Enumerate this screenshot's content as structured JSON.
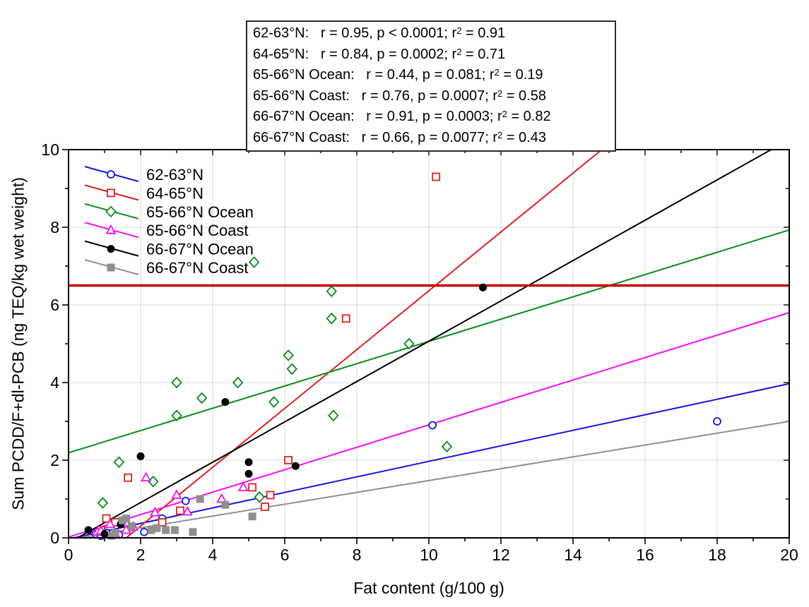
{
  "chart_data": {
    "type": "scatter",
    "xlabel": "Fat content (g/100 g)",
    "ylabel": "Sum PCDD/F+dl-PCB (ng TEQ/kg wet weight)",
    "xlim": [
      0,
      20
    ],
    "ylim": [
      0,
      10
    ],
    "x_ticks": [
      0,
      2,
      4,
      6,
      8,
      10,
      12,
      14,
      16,
      18,
      20
    ],
    "y_ticks": [
      0,
      2,
      4,
      6,
      8,
      10
    ],
    "grid": true,
    "legend_position": "top-left-inside",
    "reference_line": {
      "y": 6.5,
      "color": "#cc0000"
    },
    "series": [
      {
        "name": "62-63°N",
        "color": "#1515dd",
        "marker": "circle-open",
        "points": [
          [
            0.75,
            0.1
          ],
          [
            0.9,
            0.05
          ],
          [
            1.05,
            0.13
          ],
          [
            1.4,
            0.08
          ],
          [
            2.1,
            0.15
          ],
          [
            2.6,
            0.5
          ],
          [
            3.25,
            0.95
          ],
          [
            10.1,
            2.9
          ],
          [
            18.0,
            3.0
          ]
        ],
        "trend_line": [
          0.15,
          0.0,
          20,
          3.97
        ],
        "stats": {
          "group": "62-63°N",
          "r": "0.95",
          "p": "< 0.0001",
          "r2": "0.91"
        }
      },
      {
        "name": "64-65°N",
        "color": "#e01f1f",
        "marker": "square-open",
        "points": [
          [
            0.9,
            0.2
          ],
          [
            1.05,
            0.5
          ],
          [
            1.3,
            0.4
          ],
          [
            1.65,
            1.55
          ],
          [
            2.6,
            0.4
          ],
          [
            3.1,
            0.7
          ],
          [
            5.1,
            1.3
          ],
          [
            5.45,
            0.8
          ],
          [
            5.6,
            1.1
          ],
          [
            6.1,
            2.0
          ],
          [
            7.7,
            5.65
          ],
          [
            10.2,
            9.3
          ]
        ],
        "trend_line": [
          1.6,
          0.0,
          14.8,
          10.0
        ],
        "stats": {
          "group": "64-65°N",
          "r": "0.84",
          "p": "= 0.0002",
          "r2": "0.71"
        }
      },
      {
        "name": "65-66°N Ocean",
        "color": "#0a8c1a",
        "marker": "diamond-open",
        "points": [
          [
            0.95,
            0.9
          ],
          [
            1.4,
            1.95
          ],
          [
            2.35,
            1.45
          ],
          [
            3.0,
            3.15
          ],
          [
            3.0,
            4.0
          ],
          [
            3.7,
            3.6
          ],
          [
            4.7,
            4.0
          ],
          [
            5.15,
            7.1
          ],
          [
            5.3,
            1.05
          ],
          [
            5.7,
            3.5
          ],
          [
            6.1,
            4.7
          ],
          [
            6.2,
            4.35
          ],
          [
            7.3,
            6.35
          ],
          [
            7.3,
            5.65
          ],
          [
            7.35,
            3.15
          ],
          [
            9.45,
            5.0
          ],
          [
            10.5,
            2.35
          ]
        ],
        "trend_line": [
          0.0,
          2.19,
          20,
          7.93
        ],
        "stats": {
          "group": "65-66°N Ocean",
          "r": "0.44",
          "p": "= 0.081",
          "r2": "0.19"
        }
      },
      {
        "name": "65-66°N Coast",
        "color": "#f50df5",
        "marker": "triangle-open",
        "points": [
          [
            0.8,
            0.15
          ],
          [
            0.9,
            0.18
          ],
          [
            1.15,
            0.35
          ],
          [
            1.3,
            0.1
          ],
          [
            1.6,
            0.2
          ],
          [
            1.8,
            0.28
          ],
          [
            2.15,
            1.55
          ],
          [
            2.4,
            0.65
          ],
          [
            3.0,
            1.1
          ],
          [
            3.3,
            0.67
          ],
          [
            4.25,
            1.0
          ],
          [
            4.85,
            1.3
          ]
        ],
        "trend_line": [
          0.0,
          0.02,
          20,
          5.8
        ],
        "stats": {
          "group": "65-66°N Coast",
          "r": "0.76",
          "p": "= 0.0007",
          "r2": "0.58"
        }
      },
      {
        "name": "66-67°N Ocean",
        "color": "#000000",
        "marker": "circle-filled",
        "points": [
          [
            0.55,
            0.2
          ],
          [
            1.0,
            0.1
          ],
          [
            1.45,
            0.35
          ],
          [
            2.0,
            2.1
          ],
          [
            4.35,
            3.5
          ],
          [
            5.0,
            1.95
          ],
          [
            5.0,
            1.65
          ],
          [
            6.3,
            1.85
          ],
          [
            11.5,
            6.45
          ]
        ],
        "trend_line": [
          0.25,
          0.0,
          19.5,
          10.0
        ],
        "stats": {
          "group": "66-67°N Ocean",
          "r": "0.91",
          "p": "= 0.0003",
          "r2": "0.82"
        }
      },
      {
        "name": "66-67°N Coast",
        "color": "#8f8f8f",
        "marker": "square-filled",
        "points": [
          [
            1.2,
            0.05
          ],
          [
            1.3,
            0.13
          ],
          [
            1.5,
            0.45
          ],
          [
            1.6,
            0.5
          ],
          [
            1.75,
            0.3
          ],
          [
            2.3,
            0.2
          ],
          [
            2.45,
            0.25
          ],
          [
            2.7,
            0.2
          ],
          [
            2.95,
            0.2
          ],
          [
            3.45,
            0.15
          ],
          [
            3.65,
            1.0
          ],
          [
            4.35,
            0.85
          ],
          [
            5.1,
            0.55
          ]
        ],
        "trend_line": [
          0.32,
          0.0,
          20,
          3.0
        ],
        "stats": {
          "group": "66-67°N Coast",
          "r": "0.66",
          "p": "= 0.0077",
          "r2": "0.43"
        }
      }
    ]
  }
}
